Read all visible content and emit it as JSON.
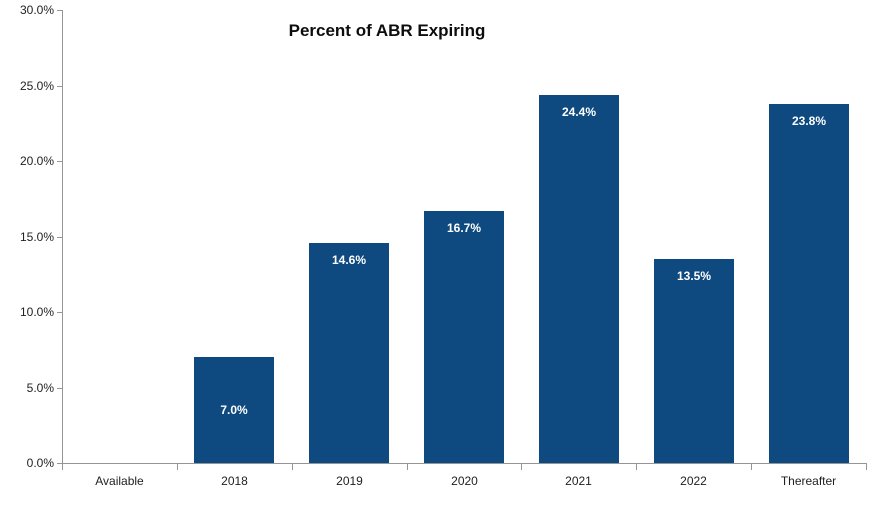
{
  "chart_data": {
    "type": "bar",
    "title": "Percent of ABR Expiring",
    "categories": [
      "Available",
      "2018",
      "2019",
      "2020",
      "2021",
      "2022",
      "Thereafter"
    ],
    "values": [
      0,
      7.0,
      14.6,
      16.7,
      24.4,
      13.5,
      23.8
    ],
    "data_labels": [
      "",
      "7.0%",
      "14.6%",
      "16.7%",
      "24.4%",
      "13.5%",
      "23.8%"
    ],
    "data_label_positions": [
      "none",
      "center",
      "inside-end",
      "inside-end",
      "inside-end",
      "inside-end",
      "inside-end"
    ],
    "xlabel": "",
    "ylabel": "",
    "ylim": [
      0,
      30
    ],
    "y_tick_step": 5,
    "y_tick_labels": [
      "0.0%",
      "5.0%",
      "10.0%",
      "15.0%",
      "20.0%",
      "25.0%",
      "30.0%"
    ],
    "grid": "off",
    "legend": "none",
    "colors": {
      "bar_fill": "#0E4A80",
      "data_label_text": "#FFFFFF",
      "axis_line": "#959595",
      "tick_label_text": "#1F1F1F",
      "title_text": "#0D0D0D",
      "background": "#FFFFFF"
    }
  }
}
